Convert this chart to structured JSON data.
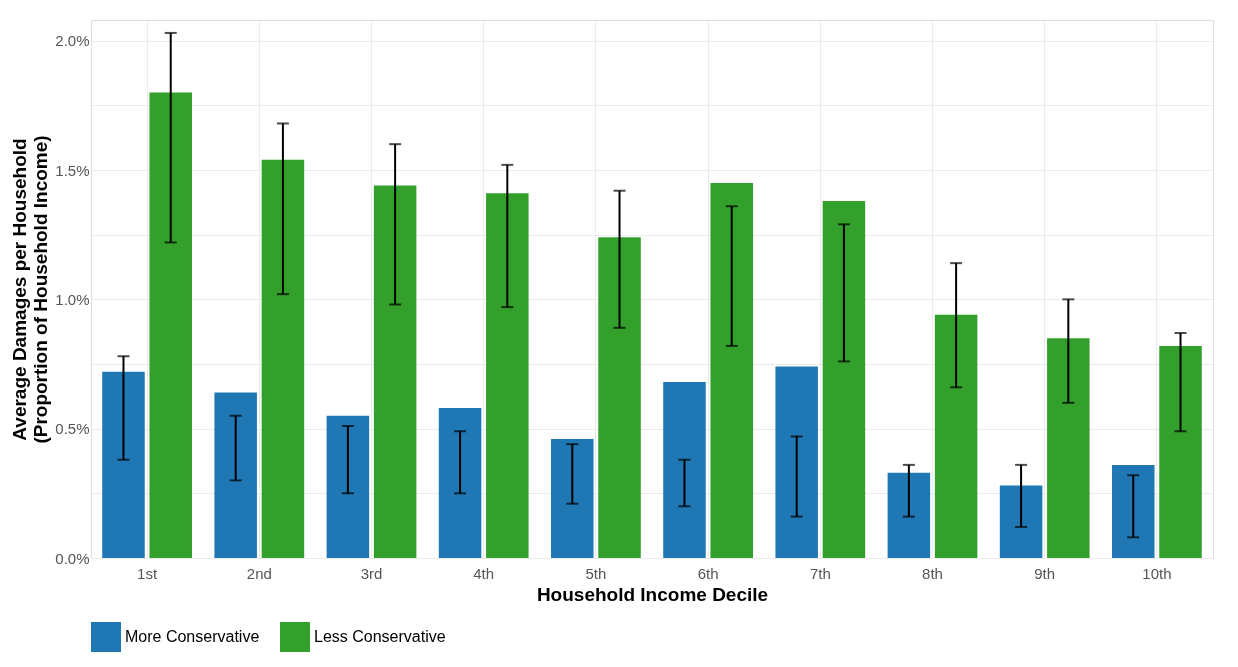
{
  "chart_data": {
    "type": "bar",
    "xlabel": "Household Income Decile",
    "ylabel": "Average Damages per Household\n(Proportion of Household Income)",
    "categories": [
      "1st",
      "2nd",
      "3rd",
      "4th",
      "5th",
      "6th",
      "7th",
      "8th",
      "9th",
      "10th"
    ],
    "series": [
      {
        "name": "More Conservative",
        "color": "#1f78b4",
        "values": [
          0.72,
          0.64,
          0.55,
          0.58,
          0.46,
          0.68,
          0.74,
          0.33,
          0.28,
          0.36
        ],
        "errors": [
          [
            0.38,
            0.78
          ],
          [
            0.3,
            0.55
          ],
          [
            0.25,
            0.51
          ],
          [
            0.25,
            0.49
          ],
          [
            0.21,
            0.44
          ],
          [
            0.2,
            0.38
          ],
          [
            0.16,
            0.47
          ],
          [
            0.16,
            0.36
          ],
          [
            0.12,
            0.36
          ],
          [
            0.08,
            0.32
          ]
        ]
      },
      {
        "name": "Less Conservative",
        "color": "#33a02c",
        "values": [
          1.8,
          1.54,
          1.44,
          1.41,
          1.24,
          1.45,
          1.38,
          0.94,
          0.85,
          0.82
        ],
        "errors": [
          [
            1.22,
            2.03
          ],
          [
            1.02,
            1.68
          ],
          [
            0.98,
            1.6
          ],
          [
            0.97,
            1.52
          ],
          [
            0.89,
            1.42
          ],
          [
            0.82,
            1.36
          ],
          [
            0.76,
            1.29
          ],
          [
            0.66,
            1.14
          ],
          [
            0.6,
            1.0
          ],
          [
            0.49,
            0.87
          ]
        ]
      }
    ],
    "ylim": [
      0,
      2.08
    ],
    "yticks": [
      {
        "value": 0,
        "label": "0.0%"
      },
      {
        "value": 0.25,
        "label": null
      },
      {
        "value": 0.5,
        "label": "0.5%"
      },
      {
        "value": 0.75,
        "label": null
      },
      {
        "value": 1,
        "label": "1.0%"
      },
      {
        "value": 1.25,
        "label": null
      },
      {
        "value": 1.5,
        "label": "1.5%"
      },
      {
        "value": 1.75,
        "label": null
      },
      {
        "value": 2,
        "label": "2.0%"
      }
    ],
    "grid": true,
    "legend": "bottom"
  }
}
